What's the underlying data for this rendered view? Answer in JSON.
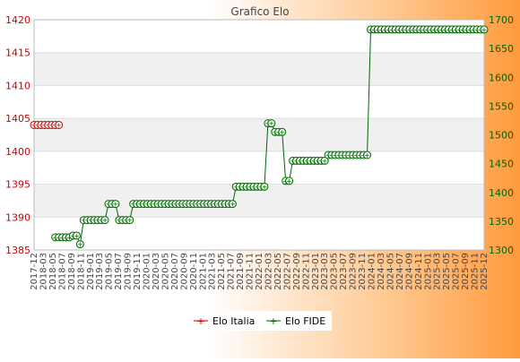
{
  "chart_data": {
    "type": "line",
    "title": "Grafico Elo",
    "left_axis": {
      "ticks": [
        1385,
        1390,
        1395,
        1400,
        1405,
        1410,
        1415,
        1420
      ],
      "range": [
        1385,
        1420
      ],
      "color": "#cc0000"
    },
    "right_axis": {
      "ticks": [
        1300,
        1350,
        1400,
        1450,
        1500,
        1550,
        1600,
        1650,
        1700
      ],
      "range": [
        1300,
        1700
      ],
      "color": "#006600"
    },
    "x_labels": [
      "2017-12",
      "2018-03",
      "2018-05",
      "2018-07",
      "2018-09",
      "2018-11",
      "2019-01",
      "2019-03",
      "2019-05",
      "2019-07",
      "2019-09",
      "2019-11",
      "2020-01",
      "2020-03",
      "2020-05",
      "2020-07",
      "2020-09",
      "2020-11",
      "2021-01",
      "2021-03",
      "2021-05",
      "2021-07",
      "2021-09",
      "2021-11",
      "2022-01",
      "2022-03",
      "2022-05",
      "2022-07",
      "2022-09",
      "2022-11",
      "2023-01",
      "2023-03",
      "2023-05",
      "2023-07",
      "2023-09",
      "2023-11",
      "2024-01",
      "2024-03",
      "2024-05",
      "2024-07",
      "2024-09",
      "2024-11",
      "2025-01",
      "2025-03",
      "2025-05",
      "2025-07",
      "2025-09",
      "2025-11",
      "2025-12"
    ],
    "series": [
      {
        "name": "Elo Italia",
        "axis": "left",
        "color": "#cc0000",
        "values": [
          1404,
          1404,
          1404,
          1404,
          1404,
          1404,
          1404,
          1404
        ]
      },
      {
        "name": "Elo FIDE",
        "axis": "right",
        "color": "#006600",
        "start_index": 6,
        "values": [
          1322,
          1322,
          1322,
          1322,
          1322,
          1325,
          1325,
          1310,
          1352,
          1352,
          1352,
          1352,
          1352,
          1352,
          1352,
          1380,
          1380,
          1380,
          1352,
          1352,
          1352,
          1352,
          1380,
          1380,
          1380,
          1380,
          1380,
          1380,
          1380,
          1380,
          1380,
          1380,
          1380,
          1380,
          1380,
          1380,
          1380,
          1380,
          1380,
          1380,
          1380,
          1380,
          1380,
          1380,
          1380,
          1380,
          1380,
          1380,
          1380,
          1380,
          1380,
          1410,
          1410,
          1410,
          1410,
          1410,
          1410,
          1410,
          1410,
          1410,
          1520,
          1520,
          1505,
          1505,
          1505,
          1420,
          1420,
          1455,
          1455,
          1455,
          1455,
          1455,
          1455,
          1455,
          1455,
          1455,
          1455,
          1465,
          1465,
          1465,
          1465,
          1465,
          1465,
          1465,
          1465,
          1465,
          1465,
          1465,
          1465,
          1683,
          1683,
          1683,
          1683,
          1683,
          1683,
          1683,
          1683,
          1683,
          1683,
          1683,
          1683,
          1683,
          1683,
          1683,
          1683,
          1683,
          1683,
          1683,
          1683,
          1683,
          1683,
          1683,
          1683,
          1683,
          1683,
          1683,
          1683,
          1683,
          1683,
          1683,
          1683,
          1683
        ]
      }
    ],
    "legend_position": "bottom-center",
    "grid": "horizontal bands"
  }
}
